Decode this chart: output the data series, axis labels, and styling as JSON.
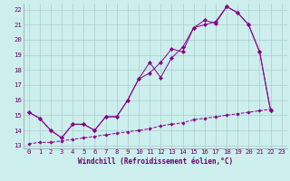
{
  "xlabel": "Windchill (Refroidissement éolien,°C)",
  "background_color": "#cceeed",
  "grid_color": "#aacccc",
  "line_color": "#880088",
  "xlim": [
    -0.5,
    23.5
  ],
  "ylim": [
    12.8,
    22.4
  ],
  "xticks": [
    0,
    1,
    2,
    3,
    4,
    5,
    6,
    7,
    8,
    9,
    10,
    11,
    12,
    13,
    14,
    15,
    16,
    17,
    18,
    19,
    20,
    21,
    22,
    23
  ],
  "yticks": [
    13,
    14,
    15,
    16,
    17,
    18,
    19,
    20,
    21,
    22
  ],
  "line1_x": [
    0,
    1,
    2,
    3,
    4,
    5,
    6,
    7,
    8,
    9,
    10,
    11,
    12,
    13,
    14,
    15,
    16,
    17,
    18,
    19,
    20,
    21,
    22
  ],
  "line1_y": [
    15.2,
    14.8,
    14.0,
    13.5,
    14.4,
    14.4,
    14.0,
    14.9,
    14.9,
    16.0,
    17.4,
    17.8,
    18.5,
    19.4,
    19.2,
    20.8,
    21.3,
    21.1,
    22.2,
    21.8,
    21.0,
    19.2,
    15.3
  ],
  "line2_x": [
    0,
    1,
    2,
    3,
    4,
    5,
    6,
    7,
    8,
    9,
    10,
    11,
    12,
    13,
    14,
    15,
    16,
    17,
    18,
    19,
    20,
    21,
    22
  ],
  "line2_y": [
    15.2,
    14.8,
    14.0,
    13.5,
    14.4,
    14.4,
    14.0,
    14.9,
    14.9,
    16.0,
    17.4,
    18.5,
    17.5,
    18.8,
    19.5,
    20.8,
    21.0,
    21.2,
    22.2,
    21.8,
    21.0,
    19.2,
    15.3
  ],
  "line3_x": [
    0,
    1,
    2,
    3,
    4,
    5,
    6,
    7,
    8,
    9,
    10,
    11,
    12,
    13,
    14,
    15,
    16,
    17,
    18,
    19,
    20,
    21,
    22
  ],
  "line3_y": [
    13.1,
    13.2,
    13.2,
    13.3,
    13.4,
    13.5,
    13.6,
    13.7,
    13.8,
    13.9,
    14.0,
    14.1,
    14.3,
    14.4,
    14.5,
    14.7,
    14.8,
    14.9,
    15.0,
    15.1,
    15.2,
    15.3,
    15.4
  ],
  "fontsize_label": 5.5,
  "fontsize_tick": 5.2
}
